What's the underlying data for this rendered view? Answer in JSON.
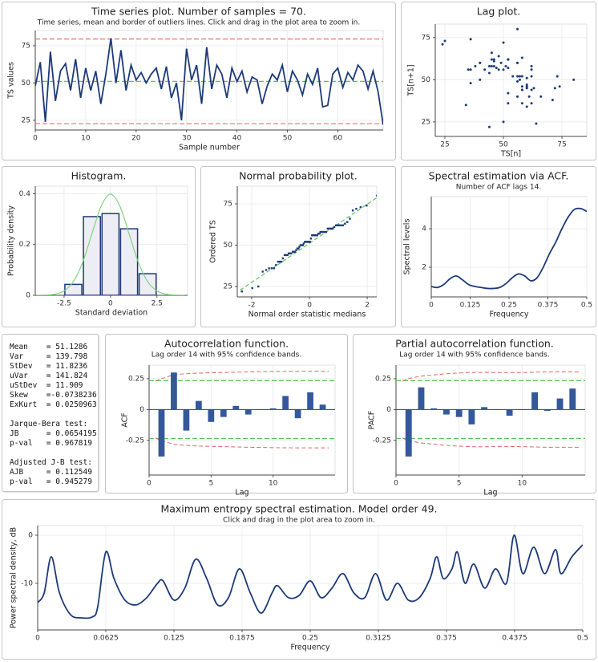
{
  "chart_data": [
    {
      "type": "line",
      "title": "Time series plot. Number of samples = 70.",
      "subtitle": "Time series, mean and border of outliers lines. Click and drag in the plot area to zoom in.",
      "xlabel": "Sample number",
      "ylabel": "TS values",
      "values": [
        48,
        64,
        24,
        71,
        38,
        58,
        63,
        45,
        66,
        40,
        60,
        45,
        58,
        36,
        56,
        80,
        50,
        72,
        45,
        62,
        52,
        57,
        50,
        56,
        60,
        46,
        61,
        40,
        50,
        25,
        73,
        52,
        62,
        36,
        74,
        46,
        62,
        56,
        40,
        60,
        51,
        58,
        44,
        54,
        52,
        36,
        48,
        56,
        52,
        62,
        44,
        58,
        52,
        42,
        56,
        49,
        60,
        34,
        35,
        56,
        60,
        47,
        57,
        52,
        62,
        58,
        46,
        58,
        44,
        22
      ],
      "color": "#1c3a78",
      "xlim": [
        0,
        69
      ],
      "ylim": [
        18.5,
        85.2
      ],
      "xticks": [
        0,
        10,
        20,
        30,
        40,
        50,
        60
      ],
      "yticks": [
        25,
        50,
        75
      ],
      "grid": true,
      "hlines": [
        {
          "value": 51.1286,
          "color": "#5cbf5c"
        },
        {
          "value": 79.5,
          "color": "#e87070"
        },
        {
          "value": 22.7,
          "color": "#e87070"
        }
      ]
    },
    {
      "type": "lag",
      "title": "Lag plot.",
      "xlabel": "TS[n]",
      "ylabel": "TS[n+1]",
      "color": "#1c3a78",
      "xlim": [
        20.9,
        85.6
      ],
      "ylim": [
        16.4,
        83
      ],
      "xticks": [
        25,
        50,
        75
      ],
      "yticks": [
        25,
        50,
        75
      ],
      "grid": true
    },
    {
      "type": "histogram",
      "title": "Histogram.",
      "xlabel": "Standard deviation",
      "ylabel": "Probability density",
      "bins": [
        -2.5,
        -1.5,
        -0.5,
        0.5,
        1.5,
        2.5
      ],
      "values": [
        0.043,
        0.31,
        0.322,
        0.262,
        0.085
      ],
      "color": "#ededf5",
      "edge_color": "#1c3a78",
      "xlim": [
        -4.05,
        4.15
      ],
      "ylim": [
        0,
        0.43
      ],
      "xticks": [
        -2.5,
        0,
        2.5
      ],
      "yticks": [
        0,
        0.2,
        0.4
      ],
      "grid": true,
      "curve": {
        "x": [
          -4,
          -3.5,
          -3,
          -2.5,
          -2,
          -1.5,
          -1,
          -0.5,
          0,
          0.5,
          1,
          1.5,
          2,
          2.5,
          3,
          3.5,
          4
        ],
        "y": [
          0.0001,
          0.0009,
          0.0044,
          0.0175,
          0.054,
          0.1295,
          0.242,
          0.3521,
          0.3989,
          0.3521,
          0.242,
          0.1295,
          0.054,
          0.0175,
          0.0044,
          0.0009,
          0.0001
        ],
        "color": "#7fd47f"
      }
    },
    {
      "type": "scatter",
      "title": "Normal probability plot.",
      "xlabel": "Normal order statistic medians",
      "ylabel": "Ordered TS",
      "color": "#1c3a78",
      "x": [
        -2.34,
        -1.98,
        -1.77,
        -1.62,
        -1.5,
        -1.4,
        -1.31,
        -1.23,
        -1.16,
        -1.09,
        -1.03,
        -0.97,
        -0.92,
        -0.86,
        -0.81,
        -0.76,
        -0.72,
        -0.67,
        -0.63,
        -0.58,
        -0.54,
        -0.5,
        -0.46,
        -0.42,
        -0.38,
        -0.35,
        -0.31,
        -0.27,
        -0.23,
        -0.2,
        -0.16,
        -0.13,
        -0.09,
        -0.05,
        -0.02,
        0.02,
        0.05,
        0.09,
        0.13,
        0.16,
        0.2,
        0.23,
        0.27,
        0.31,
        0.35,
        0.38,
        0.42,
        0.46,
        0.5,
        0.54,
        0.58,
        0.63,
        0.67,
        0.72,
        0.76,
        0.81,
        0.86,
        0.92,
        0.97,
        1.03,
        1.09,
        1.16,
        1.23,
        1.31,
        1.4,
        1.5,
        1.62,
        1.77,
        1.98,
        2.34
      ],
      "values": [
        22,
        24,
        25,
        34,
        35,
        36,
        36,
        36,
        38,
        40,
        40,
        40,
        42,
        44,
        44,
        44,
        45,
        45,
        45,
        46,
        46,
        46,
        47,
        48,
        48,
        49,
        50,
        50,
        50,
        51,
        52,
        52,
        52,
        52,
        52,
        52,
        54,
        56,
        56,
        56,
        56,
        56,
        56,
        57,
        57,
        58,
        58,
        58,
        58,
        58,
        58,
        60,
        60,
        60,
        60,
        60,
        61,
        62,
        62,
        62,
        62,
        62,
        63,
        64,
        66,
        71,
        72,
        73,
        74,
        80
      ],
      "xlim": [
        -2.5,
        2.33
      ],
      "ylim": [
        18.7,
        85.7
      ],
      "xticks": [
        -2,
        0,
        2
      ],
      "yticks": [
        25,
        50,
        75
      ],
      "grid": true,
      "fit_line": {
        "x": [
          -2.4,
          2.34
        ],
        "y": [
          22.76,
          78.8
        ],
        "color": "#5cbf5c"
      }
    },
    {
      "type": "line",
      "smooth": true,
      "title": "Spectral estimation via ACF.",
      "subtitle": "Number of ACF lags 14.",
      "xlabel": "Frequency",
      "ylabel": "Spectral levels",
      "color": "#1c3a78",
      "x": [
        0,
        0.02,
        0.04,
        0.06,
        0.08,
        0.1,
        0.12,
        0.14,
        0.16,
        0.18,
        0.2,
        0.22,
        0.24,
        0.26,
        0.28,
        0.3,
        0.32,
        0.34,
        0.36,
        0.38,
        0.4,
        0.42,
        0.44,
        0.46,
        0.48,
        0.5
      ],
      "values": [
        1.0,
        0.95,
        1.1,
        1.4,
        1.55,
        1.35,
        1.1,
        1.0,
        0.95,
        0.9,
        0.9,
        0.95,
        1.15,
        1.45,
        1.65,
        1.55,
        1.3,
        1.45,
        2.0,
        2.7,
        3.3,
        4.0,
        4.6,
        5.0,
        5.05,
        4.9
      ],
      "xlim": [
        0,
        0.5
      ],
      "ylim": [
        0.46,
        5.67
      ],
      "xticks": [
        0,
        0.125,
        0.25,
        0.375,
        0.5
      ],
      "yticks": [
        2,
        4
      ],
      "grid": true
    },
    {
      "type": "acf",
      "title": "Autocorrelation function.",
      "subtitle": "Lag order 14 with 95% confidence bands.",
      "xlabel": "Lag",
      "ylabel": "ACF",
      "color": "#34589a",
      "x": [
        1,
        2,
        3,
        4,
        5,
        6,
        7,
        8,
        9,
        10,
        11,
        12,
        13,
        14
      ],
      "values": [
        -0.38,
        0.3,
        -0.17,
        0.07,
        -0.1,
        -0.06,
        0.03,
        -0.04,
        0.0,
        0.01,
        0.11,
        -0.07,
        0.14,
        0.04
      ],
      "xlim": [
        0,
        15
      ],
      "ylim": [
        -0.53,
        0.36
      ],
      "xticks": [
        0,
        5,
        10
      ],
      "yticks": [
        -0.25,
        0,
        0.25
      ],
      "grid": true,
      "hlines": [
        {
          "value": 0.234,
          "color": "#5cbf5c"
        },
        {
          "value": -0.234,
          "color": "#5cbf5c"
        }
      ],
      "bands": {
        "x": [
          0.5,
          1,
          2,
          3,
          4,
          6,
          8,
          10,
          12,
          14.5
        ],
        "upper": [
          0.23,
          0.25,
          0.28,
          0.29,
          0.295,
          0.3,
          0.305,
          0.308,
          0.31,
          0.31
        ],
        "lower": [
          -0.23,
          -0.25,
          -0.28,
          -0.29,
          -0.295,
          -0.3,
          -0.305,
          -0.308,
          -0.31,
          -0.31
        ],
        "color": "#e06666"
      }
    },
    {
      "type": "acf",
      "title": "Partial autocorrelation function.",
      "subtitle": "Lag order 14 with 95% confidence bands.",
      "xlabel": "Lag",
      "ylabel": "PACF",
      "color": "#34589a",
      "x": [
        1,
        2,
        3,
        4,
        5,
        6,
        7,
        8,
        9,
        10,
        11,
        12,
        13,
        14
      ],
      "values": [
        -0.38,
        0.18,
        0.01,
        -0.04,
        -0.06,
        -0.12,
        0.02,
        0.0,
        -0.05,
        0.0,
        0.14,
        -0.01,
        0.09,
        0.17
      ],
      "xlim": [
        0,
        15
      ],
      "ylim": [
        -0.53,
        0.36
      ],
      "xticks": [
        0,
        5,
        10
      ],
      "yticks": [
        -0.25,
        0,
        0.25
      ],
      "grid": true,
      "hlines": [
        {
          "value": 0.234,
          "color": "#5cbf5c"
        },
        {
          "value": -0.234,
          "color": "#5cbf5c"
        }
      ],
      "bands": {
        "x": [
          0.5,
          1,
          2,
          3,
          4,
          6,
          8,
          10,
          12,
          14.5
        ],
        "upper": [
          0.23,
          0.25,
          0.27,
          0.28,
          0.29,
          0.3,
          0.3,
          0.3,
          0.305,
          0.305
        ],
        "lower": [
          -0.23,
          -0.25,
          -0.27,
          -0.28,
          -0.29,
          -0.3,
          -0.3,
          -0.3,
          -0.305,
          -0.305
        ],
        "color": "#e06666"
      }
    },
    {
      "type": "line",
      "smooth": true,
      "title": "Maximum entropy spectral estimation. Model order 49.",
      "subtitle": "Click and drag in the plot area to zoom in.",
      "xlabel": "Frequency",
      "ylabel": "Power spectral density, dB",
      "color": "#1c3a78",
      "x": [
        0,
        0.006,
        0.0125,
        0.02,
        0.03,
        0.04,
        0.05,
        0.055,
        0.0625,
        0.07,
        0.08,
        0.09,
        0.1,
        0.11,
        0.115,
        0.125,
        0.135,
        0.145,
        0.155,
        0.165,
        0.175,
        0.185,
        0.195,
        0.205,
        0.215,
        0.22,
        0.23,
        0.24,
        0.25,
        0.26,
        0.27,
        0.28,
        0.29,
        0.3,
        0.31,
        0.32,
        0.33,
        0.34,
        0.35,
        0.36,
        0.366,
        0.372,
        0.38,
        0.385,
        0.392,
        0.4,
        0.41,
        0.42,
        0.43,
        0.437,
        0.445,
        0.455,
        0.465,
        0.475,
        0.48,
        0.49,
        0.5
      ],
      "values": [
        -14,
        -12,
        -4.5,
        -12,
        -16.5,
        -17.2,
        -17,
        -15,
        -3.5,
        -9,
        -13.5,
        -14.5,
        -13,
        -10,
        -9.5,
        -13.5,
        -11,
        -5,
        -9,
        -14.5,
        -13,
        -7,
        -12,
        -16.2,
        -12,
        -10.5,
        -13,
        -12.5,
        -9.5,
        -13,
        -11,
        -8,
        -12,
        -13,
        -8,
        -13.5,
        -10,
        -13.5,
        -13,
        -9,
        -4.5,
        -9,
        -7,
        -3.5,
        -10,
        -6,
        -11,
        -7,
        -10,
        0,
        -8,
        -2.5,
        -8,
        -3,
        -8,
        -4.5,
        -2
      ],
      "xlim": [
        0,
        0.5
      ],
      "ylim": [
        -19.7,
        2
      ],
      "xticks": [
        0,
        0.0625,
        0.125,
        0.1875,
        0.25,
        0.3125,
        0.375,
        0.4375,
        0.5
      ],
      "yticks": [
        -10,
        0
      ],
      "grid": true
    }
  ],
  "stats": [
    [
      "Mean    = 51.1286",
      "Var     = 139.798",
      "StDev   = 11.8236",
      "uVar    = 141.824",
      "uStDev  = 11.909",
      "Skew    =-0.0738236",
      "ExKurt  = 0.0250963"
    ],
    [
      "Jarque-Bera test:",
      "JB      = 0.0654195",
      "p-val   = 0.967819"
    ],
    [
      "Adjusted J-B test:",
      "AJB     = 0.112549",
      "p-val   = 0.945279"
    ]
  ]
}
